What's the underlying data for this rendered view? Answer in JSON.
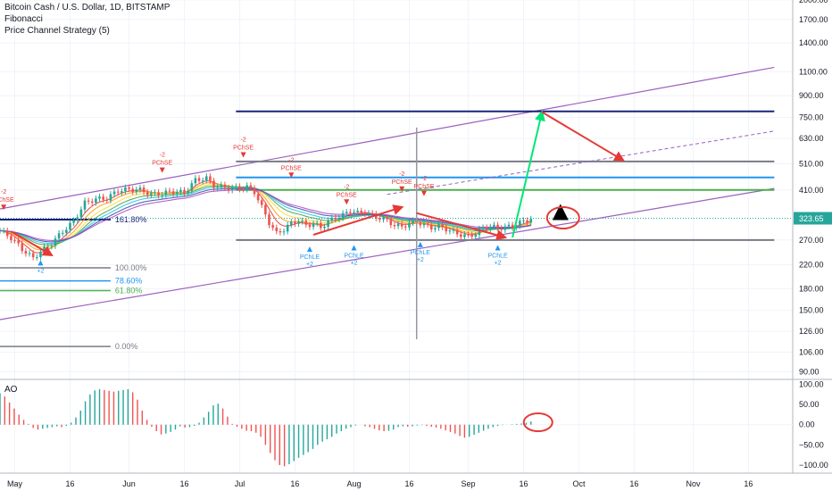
{
  "legend": {
    "symbol": "Bitcoin Cash / U.S. Dollar, 1D, BITSTAMP",
    "study_1": "Fibonacci",
    "study_2": "Price Channel Strategy (5)"
  },
  "ao_label": "AO",
  "price_badge": {
    "value": "323.65",
    "color": "#26a69a"
  },
  "chart_data": [
    {
      "type": "line",
      "subtype": "candlestick",
      "scale": "log",
      "ylim": [
        85,
        2000
      ],
      "y_ticks": [
        2000,
        1700,
        1400,
        1100,
        900,
        750,
        630,
        510,
        410,
        323.65,
        270,
        220,
        180,
        150,
        126,
        106,
        90
      ],
      "y_tick_labels": [
        "2000.00",
        "1700.00",
        "1400.00",
        "1100.00",
        "900.00",
        "750.00",
        "630.00",
        "510.00",
        "410.00",
        "323.65",
        "270.00",
        "220.00",
        "180.00",
        "150.00",
        "126.00",
        "106.00",
        "90.00"
      ],
      "x_tick_labels": [
        "May",
        "16",
        "Jun",
        "16",
        "Jul",
        "16",
        "Aug",
        "16",
        "Sep",
        "16",
        "Oct",
        "16",
        "Nov",
        "16"
      ],
      "x_tick_days": [
        4,
        19,
        35,
        50,
        65,
        80,
        96,
        111,
        127,
        142,
        157,
        172,
        188,
        203
      ],
      "x_range_days": [
        0,
        215
      ],
      "close_series": [
        {
          "day": 0,
          "price": 292
        },
        {
          "day": 3,
          "price": 275
        },
        {
          "day": 6,
          "price": 250
        },
        {
          "day": 9,
          "price": 232
        },
        {
          "day": 11,
          "price": 245
        },
        {
          "day": 14,
          "price": 262
        },
        {
          "day": 17,
          "price": 290
        },
        {
          "day": 20,
          "price": 315
        },
        {
          "day": 23,
          "price": 368
        },
        {
          "day": 26,
          "price": 380
        },
        {
          "day": 29,
          "price": 382
        },
        {
          "day": 32,
          "price": 408
        },
        {
          "day": 35,
          "price": 412
        },
        {
          "day": 38,
          "price": 410
        },
        {
          "day": 41,
          "price": 395
        },
        {
          "day": 44,
          "price": 398
        },
        {
          "day": 47,
          "price": 405
        },
        {
          "day": 50,
          "price": 400
        },
        {
          "day": 53,
          "price": 445
        },
        {
          "day": 56,
          "price": 452
        },
        {
          "day": 58,
          "price": 425
        },
        {
          "day": 61,
          "price": 418
        },
        {
          "day": 64,
          "price": 415
        },
        {
          "day": 67,
          "price": 420
        },
        {
          "day": 69,
          "price": 403
        },
        {
          "day": 71,
          "price": 355
        },
        {
          "day": 73,
          "price": 312
        },
        {
          "day": 75,
          "price": 285
        },
        {
          "day": 77,
          "price": 295
        },
        {
          "day": 79,
          "price": 310
        },
        {
          "day": 81,
          "price": 318
        },
        {
          "day": 83,
          "price": 305
        },
        {
          "day": 85,
          "price": 310
        },
        {
          "day": 87,
          "price": 300
        },
        {
          "day": 89,
          "price": 315
        },
        {
          "day": 91,
          "price": 325
        },
        {
          "day": 93,
          "price": 332
        },
        {
          "day": 95,
          "price": 345
        },
        {
          "day": 97,
          "price": 338
        },
        {
          "day": 99,
          "price": 342
        },
        {
          "day": 101,
          "price": 330
        },
        {
          "day": 103,
          "price": 325
        },
        {
          "day": 105,
          "price": 318
        },
        {
          "day": 107,
          "price": 305
        },
        {
          "day": 109,
          "price": 302
        },
        {
          "day": 111,
          "price": 310
        },
        {
          "day": 113,
          "price": 315
        },
        {
          "day": 115,
          "price": 306
        },
        {
          "day": 117,
          "price": 300
        },
        {
          "day": 119,
          "price": 302
        },
        {
          "day": 121,
          "price": 296
        },
        {
          "day": 123,
          "price": 288
        },
        {
          "day": 125,
          "price": 282
        },
        {
          "day": 127,
          "price": 278
        },
        {
          "day": 129,
          "price": 285
        },
        {
          "day": 131,
          "price": 298
        },
        {
          "day": 133,
          "price": 302
        },
        {
          "day": 135,
          "price": 299
        },
        {
          "day": 137,
          "price": 300
        },
        {
          "day": 139,
          "price": 303
        },
        {
          "day": 141,
          "price": 312
        },
        {
          "day": 143,
          "price": 318
        },
        {
          "day": 144,
          "price": 323.65
        }
      ],
      "horizontal_levels": [
        {
          "price": 790,
          "color": "#1a237e"
        },
        {
          "price": 520,
          "color": "#787b86"
        },
        {
          "price": 455,
          "color": "#2196f3"
        },
        {
          "price": 410,
          "color": "#4caf50"
        },
        {
          "price": 270,
          "color": "#787b86"
        }
      ],
      "fibonacci": [
        {
          "label": "161.80%",
          "price": 320
        },
        {
          "label": "100.00%",
          "price": 214
        },
        {
          "label": "78.60%",
          "price": 192
        },
        {
          "label": "61.80%",
          "price": 177
        },
        {
          "label": "0.00%",
          "price": 111
        }
      ],
      "channel_lines": [
        {
          "from": {
            "day": 0,
            "price": 350
          },
          "to": {
            "day": 210,
            "price": 1140
          },
          "color": "#9c5fbf"
        },
        {
          "from": {
            "day": 0,
            "price": 139
          },
          "to": {
            "day": 210,
            "price": 415
          },
          "color": "#9c5fbf"
        }
      ],
      "signals": [
        {
          "day": 1,
          "price": 352,
          "text": "PChSE",
          "qty": "-2",
          "side": "sell"
        },
        {
          "day": 44,
          "price": 480,
          "text": "PChSE",
          "qty": "-2",
          "side": "sell"
        },
        {
          "day": 66,
          "price": 545,
          "text": "PChSE",
          "qty": "-2",
          "side": "sell"
        },
        {
          "day": 79,
          "price": 460,
          "text": "PChSE",
          "qty": "-2",
          "side": "sell"
        },
        {
          "day": 94,
          "price": 368,
          "text": "PChSE",
          "qty": "-2",
          "side": "sell"
        },
        {
          "day": 109,
          "price": 410,
          "text": "PChSE",
          "qty": "-2",
          "side": "sell"
        },
        {
          "day": 115,
          "price": 395,
          "text": "PChSE",
          "qty": "-2",
          "side": "sell"
        },
        {
          "day": 11,
          "price": 225,
          "text": "",
          "qty": "+2",
          "side": "buy"
        },
        {
          "day": 84,
          "price": 252,
          "text": "PChLE",
          "qty": "+2",
          "side": "buy"
        },
        {
          "day": 96,
          "price": 255,
          "text": "PChLE",
          "qty": "+2",
          "side": "buy"
        },
        {
          "day": 114,
          "price": 262,
          "text": "PChLE",
          "qty": "+2",
          "side": "buy"
        },
        {
          "day": 135,
          "price": 255,
          "text": "PChLE",
          "qty": "+2",
          "side": "buy"
        }
      ],
      "annotations": [
        {
          "kind": "arrow",
          "color": "#e53935",
          "from": {
            "day": 3,
            "price": 290
          },
          "to": {
            "day": 14,
            "price": 238
          }
        },
        {
          "kind": "arrow",
          "color": "#e53935",
          "from": {
            "day": 85,
            "price": 282
          },
          "to": {
            "day": 109,
            "price": 355
          }
        },
        {
          "kind": "arrow",
          "color": "#e53935",
          "from": {
            "day": 113,
            "price": 338
          },
          "to": {
            "day": 137,
            "price": 276
          }
        },
        {
          "kind": "arrow",
          "color": "#00e676",
          "from": {
            "day": 139,
            "price": 276
          },
          "to": {
            "day": 147,
            "price": 785
          }
        },
        {
          "kind": "arrow",
          "color": "#e53935",
          "from": {
            "day": 147,
            "price": 785
          },
          "to": {
            "day": 169,
            "price": 525
          }
        },
        {
          "kind": "arrow",
          "color": "#000000",
          "from": {
            "day": 152,
            "price": 320
          },
          "to": {
            "day": 152,
            "price": 355
          }
        },
        {
          "kind": "ellipse",
          "color": "#e53935",
          "center": {
            "day": 152,
            "price": 320
          }
        },
        {
          "kind": "dashed-line",
          "color": "#9c5fbf",
          "from": {
            "day": 105,
            "price": 395
          },
          "to": {
            "day": 210,
            "price": 670
          }
        }
      ],
      "crosshair_day": 113
    },
    {
      "type": "bar",
      "name": "AO",
      "ylim": [
        -120,
        110
      ],
      "y_ticks": [
        100,
        50,
        0,
        -50,
        -100
      ],
      "y_tick_labels": [
        "100.00",
        "50.00",
        "0.00",
        "−50.00",
        "−100.00"
      ],
      "values": [
        78,
        70,
        55,
        40,
        25,
        12,
        2,
        -8,
        -12,
        -10,
        -8,
        -6,
        -4,
        -6,
        -3,
        5,
        18,
        35,
        58,
        75,
        85,
        88,
        86,
        84,
        82,
        84,
        86,
        88,
        80,
        62,
        35,
        12,
        -5,
        -16,
        -24,
        -22,
        -18,
        -12,
        -4,
        -7,
        -6,
        -3,
        5,
        18,
        32,
        48,
        52,
        40,
        20,
        2,
        -5,
        -10,
        -15,
        -16,
        -20,
        -30,
        -50,
        -70,
        -88,
        -100,
        -103,
        -98,
        -90,
        -82,
        -75,
        -68,
        -60,
        -50,
        -42,
        -36,
        -30,
        -22,
        -16,
        -10,
        -6,
        -2,
        0,
        -4,
        -6,
        -10,
        -14,
        -16,
        -15,
        -12,
        -6,
        -4,
        -5,
        -4,
        -2,
        -1,
        -3,
        -5,
        -7,
        -10,
        -14,
        -18,
        -22,
        -28,
        -32,
        -30,
        -25,
        -20,
        -15,
        -10,
        -6,
        -3,
        -1,
        0,
        1,
        2,
        3,
        5,
        8
      ]
    }
  ]
}
